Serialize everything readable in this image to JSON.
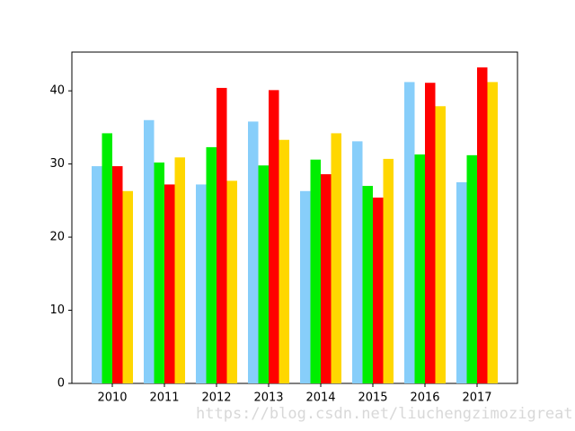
{
  "chart_data": {
    "type": "bar",
    "categories": [
      "2010",
      "2011",
      "2012",
      "2013",
      "2014",
      "2015",
      "2016",
      "2017"
    ],
    "series": [
      {
        "color": "#87cefa",
        "values": [
          29.7,
          36.0,
          27.2,
          35.8,
          26.3,
          33.1,
          41.2,
          27.5
        ]
      },
      {
        "color": "#00ee00",
        "values": [
          34.2,
          30.2,
          32.3,
          29.8,
          30.6,
          27.0,
          31.3,
          31.2
        ]
      },
      {
        "color": "#ff0000",
        "values": [
          29.7,
          27.2,
          40.4,
          40.1,
          28.6,
          25.4,
          41.1,
          43.2
        ]
      },
      {
        "color": "#ffd700",
        "values": [
          26.3,
          30.9,
          27.7,
          33.3,
          34.2,
          30.7,
          37.9,
          41.2
        ]
      }
    ],
    "ylim": [
      0,
      45.3
    ],
    "yticks": [
      0,
      10,
      20,
      30,
      40
    ],
    "grid": false,
    "watermark": "https://blog.csdn.net/liuchengzimozigreat"
  }
}
